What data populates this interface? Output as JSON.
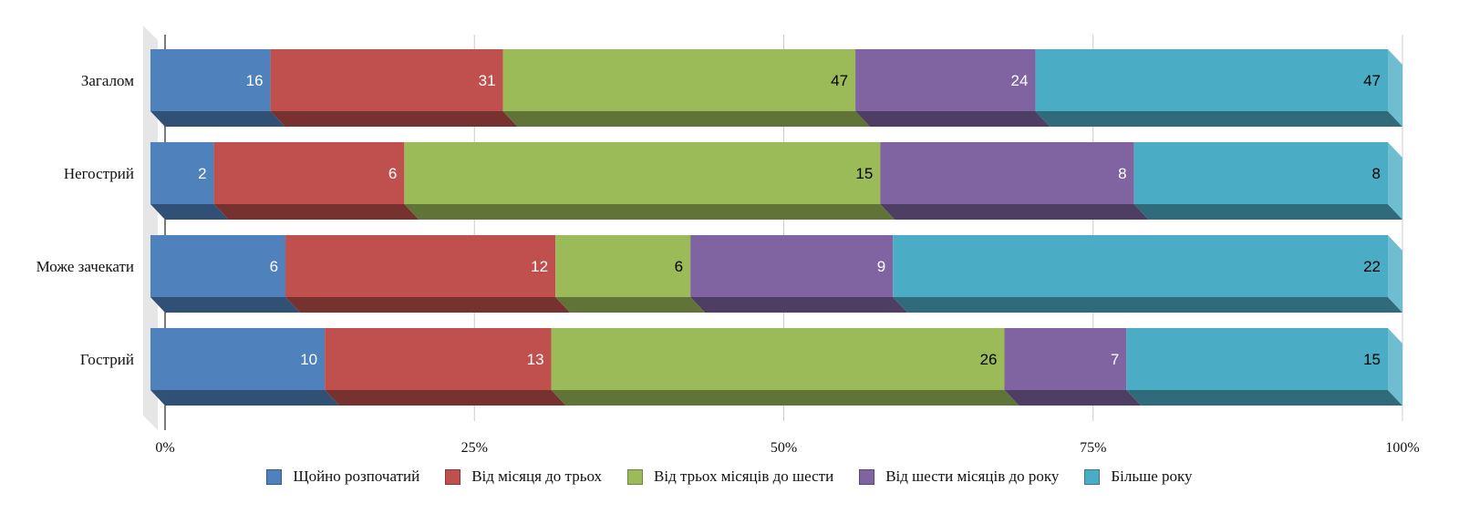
{
  "chart_data": {
    "type": "bar",
    "orientation": "horizontal",
    "stacking": "percent",
    "style": "3d",
    "categories": [
      "Загалом",
      "Негострий",
      "Може зачекати",
      "Гострий"
    ],
    "series": [
      {
        "name": "Щойно розпочатий",
        "color": "#4f81bd",
        "values": [
          16,
          2,
          6,
          10
        ]
      },
      {
        "name": "Від місяця до трьох",
        "color": "#c0504d",
        "values": [
          31,
          6,
          12,
          13
        ]
      },
      {
        "name": "Від трьох місяців до шести",
        "color": "#9bbb59",
        "values": [
          47,
          15,
          6,
          26
        ]
      },
      {
        "name": "Від шести місяців до року",
        "color": "#8064a2",
        "values": [
          24,
          8,
          9,
          7
        ]
      },
      {
        "name": "Більше року",
        "color": "#4bacc6",
        "values": [
          47,
          8,
          22,
          15
        ]
      }
    ],
    "xticks": [
      "0%",
      "25%",
      "50%",
      "75%",
      "100%"
    ],
    "xlim": [
      0,
      100
    ],
    "grid": true,
    "legend": "bottom"
  }
}
